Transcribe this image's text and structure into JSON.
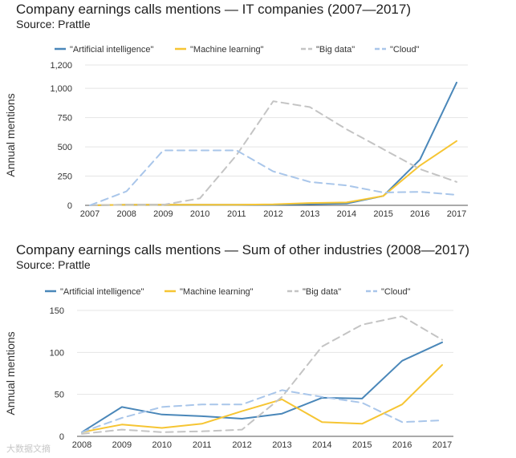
{
  "chart_data": [
    {
      "type": "line",
      "title": "Company earnings calls mentions — IT companies (2007—2017)",
      "subtitle": "Source: Prattle",
      "xlabel": "",
      "ylabel": "Annual mentions",
      "x": [
        "2007",
        "2008",
        "2009",
        "2010",
        "2011",
        "2012",
        "2013",
        "2014",
        "2015",
        "2016",
        "2017"
      ],
      "ylim": [
        0,
        1200
      ],
      "yticks": [
        0,
        250,
        500,
        750,
        1000,
        1200
      ],
      "ytick_labels": [
        "0",
        "250",
        "500",
        "750",
        "1,000",
        "1,200"
      ],
      "grid": true,
      "legend_position": "top",
      "series": [
        {
          "name": "\"Artificial intelligence\"",
          "values": [
            0,
            5,
            5,
            5,
            5,
            5,
            10,
            15,
            80,
            390,
            1050
          ],
          "color": "#4a87b9",
          "style": "solid"
        },
        {
          "name": "\"Machine learning\"",
          "values": [
            0,
            5,
            5,
            5,
            5,
            8,
            20,
            25,
            80,
            340,
            550
          ],
          "color": "#f6c533",
          "style": "solid"
        },
        {
          "name": "\"Big data\"",
          "values": [
            0,
            5,
            5,
            60,
            430,
            890,
            840,
            650,
            480,
            310,
            200
          ],
          "color": "#c4c4c4",
          "style": "dashed"
        },
        {
          "name": "\"Cloud\"",
          "values": [
            0,
            120,
            470,
            470,
            470,
            290,
            200,
            170,
            110,
            115,
            90
          ],
          "color": "#a9c6ea",
          "style": "dashed"
        }
      ]
    },
    {
      "type": "line",
      "title": "Company earnings calls mentions — Sum of other industries (2008—2017)",
      "subtitle": "Source: Prattle",
      "xlabel": "",
      "ylabel": "Annual mentions",
      "x": [
        "2008",
        "2009",
        "2010",
        "2011",
        "2012",
        "2013",
        "2014",
        "2015",
        "2016",
        "2017"
      ],
      "ylim": [
        0,
        150
      ],
      "yticks": [
        0,
        50,
        100,
        150
      ],
      "ytick_labels": [
        "0",
        "50",
        "100",
        "150"
      ],
      "grid": true,
      "legend_position": "top",
      "series": [
        {
          "name": "\"Artificial intelligence\"",
          "values": [
            5,
            35,
            26,
            24,
            21,
            27,
            46,
            45,
            90,
            112
          ],
          "color": "#4a87b9",
          "style": "solid"
        },
        {
          "name": "\"Machine learning\"",
          "values": [
            5,
            14,
            10,
            15,
            30,
            44,
            17,
            15,
            38,
            85
          ],
          "color": "#f6c533",
          "style": "solid"
        },
        {
          "name": "\"Big data\"",
          "values": [
            3,
            8,
            5,
            6,
            8,
            47,
            107,
            133,
            143,
            115
          ],
          "color": "#c4c4c4",
          "style": "dashed"
        },
        {
          "name": "\"Cloud\"",
          "values": [
            5,
            22,
            35,
            38,
            38,
            55,
            47,
            40,
            17,
            19
          ],
          "color": "#a9c6ea",
          "style": "dashed"
        }
      ]
    }
  ],
  "watermark": "大数据文摘"
}
